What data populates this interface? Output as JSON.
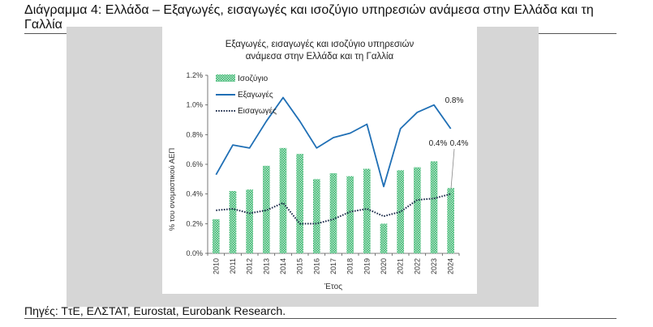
{
  "document": {
    "title": "Διάγραμμα 4: Ελλάδα – Εξαγωγές, εισαγωγές και ισοζύγιο υπηρεσιών ανάμεσα στην Ελλάδα και τη Γαλλία",
    "source": "Πηγές: ΤτΕ, ΕΛΣΤΑΤ, Eurostat, Eurobank Research."
  },
  "colors": {
    "bar": "#33b36b",
    "exports": "#1f6fb5",
    "imports": "#1c2b4a"
  },
  "chart_data": {
    "type": "bar",
    "title_lines": [
      "Εξαγωγές, εισαγωγές και ισοζύγιο υπηρεσιών",
      "ανάμεσα στην Ελλάδα και τη Γαλλία"
    ],
    "xlabel": "Έτος",
    "ylabel": "% του ονομαστικού ΑΕΠ",
    "ylim": [
      0,
      1.2
    ],
    "yticks": [
      "0.0%",
      "0.2%",
      "0.4%",
      "0.6%",
      "0.8%",
      "1.0%",
      "1.2%"
    ],
    "categories": [
      "2010",
      "2011",
      "2012",
      "2013",
      "2014",
      "2015",
      "2016",
      "2017",
      "2018",
      "2019",
      "2020",
      "2021",
      "2022",
      "2023",
      "2024"
    ],
    "series": [
      {
        "name": "Ισοζύγιο",
        "kind": "bar",
        "values": [
          0.23,
          0.42,
          0.43,
          0.59,
          0.71,
          0.67,
          0.5,
          0.54,
          0.52,
          0.57,
          0.2,
          0.56,
          0.58,
          0.62,
          0.44
        ]
      },
      {
        "name": "Εξαγωγές",
        "kind": "line",
        "values": [
          0.53,
          0.73,
          0.71,
          0.89,
          1.05,
          0.89,
          0.71,
          0.78,
          0.81,
          0.87,
          0.45,
          0.84,
          0.95,
          1.0,
          0.84
        ]
      },
      {
        "name": "Εισαγωγές",
        "kind": "dotted-line",
        "values": [
          0.29,
          0.3,
          0.27,
          0.29,
          0.34,
          0.2,
          0.2,
          0.23,
          0.28,
          0.3,
          0.25,
          0.28,
          0.36,
          0.37,
          0.4
        ]
      }
    ],
    "annotations": [
      "0.8%",
      "0.4%",
      "0.4%"
    ],
    "legend": "top-left"
  }
}
